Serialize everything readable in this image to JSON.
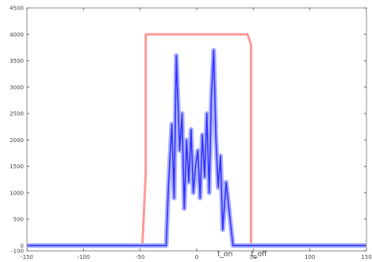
{
  "chart_data": {
    "type": "line",
    "title": "",
    "xlabel": "",
    "ylabel": "",
    "xlim": [
      -150,
      150
    ],
    "ylim": [
      -100,
      4500
    ],
    "x_ticks": [
      -150,
      -100,
      -50,
      0,
      50,
      100,
      150
    ],
    "x_tick_labels": [
      "-150",
      "-100",
      "-50",
      "0",
      "50",
      "100",
      "150"
    ],
    "y_ticks": [
      -100,
      0,
      500,
      1000,
      1500,
      2000,
      2500,
      3000,
      3500,
      4000,
      4500
    ],
    "y_tick_labels": [
      "-100",
      "0",
      "500",
      "1000",
      "1500",
      "2000",
      "2500",
      "3000",
      "3500",
      "4000",
      "4500"
    ],
    "grid": false,
    "legend": "none",
    "series": [
      {
        "color": "#ff9a9a",
        "x": [
          -150,
          -48,
          -45,
          -45,
          45,
          48,
          48,
          150
        ],
        "y": [
          0,
          0,
          1400,
          4000,
          4000,
          3800,
          0,
          0
        ]
      },
      {
        "color": "#3333ff",
        "x": [
          -150,
          -45,
          -45,
          -27,
          -25,
          -22,
          -20,
          -18,
          -15,
          -13,
          -11,
          -9,
          -7,
          -5,
          -3,
          -1,
          1,
          3,
          5,
          7,
          9,
          11,
          13,
          15,
          17,
          19,
          21,
          23,
          26,
          30,
          32,
          150
        ],
        "y": [
          0,
          0,
          0,
          0,
          1100,
          2300,
          900,
          3600,
          1800,
          2500,
          700,
          2000,
          1200,
          2200,
          1000,
          1500,
          1800,
          900,
          2100,
          1300,
          2500,
          1000,
          2800,
          3700,
          2000,
          1100,
          1700,
          300,
          1200,
          400,
          0,
          0
        ]
      }
    ],
    "annotations": [
      {
        "text": "t_on",
        "x": 25,
        "y": -200
      },
      {
        "text": "t_off",
        "x": 55,
        "y": -200
      }
    ]
  }
}
